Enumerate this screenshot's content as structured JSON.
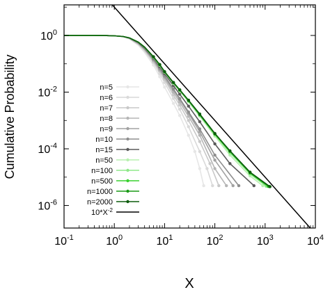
{
  "chart_data": {
    "type": "line",
    "xlabel": "X",
    "ylabel": "Cumulative Probability",
    "xscale": "log",
    "yscale": "log",
    "xlim": [
      0.1,
      10000
    ],
    "ylim": [
      1.6e-07,
      12
    ],
    "x_ticks": [
      {
        "value": 0.1,
        "base": "10",
        "exp": "-1"
      },
      {
        "value": 1,
        "base": "10",
        "exp": "0"
      },
      {
        "value": 10,
        "base": "10",
        "exp": "1"
      },
      {
        "value": 100,
        "base": "10",
        "exp": "2"
      },
      {
        "value": 1000,
        "base": "10",
        "exp": "3"
      },
      {
        "value": 10000,
        "base": "10",
        "exp": "4"
      }
    ],
    "y_ticks": [
      {
        "value": 1,
        "base": "10",
        "exp": "0"
      },
      {
        "value": 0.01,
        "base": "10",
        "exp": "-2"
      },
      {
        "value": 0.0001,
        "base": "10",
        "exp": "-4"
      },
      {
        "value": 1e-06,
        "base": "10",
        "exp": "-6"
      }
    ],
    "grid": false,
    "legend_position": "left",
    "reference_line": {
      "label": "10*X",
      "label_exp": "-2",
      "coefficient": 10,
      "exponent": -2,
      "color": "#000000"
    },
    "series": [
      {
        "name": "n=5",
        "n": 5,
        "color": "#e6e6e6",
        "xmax": 60,
        "points": [
          [
            0.1,
            1
          ],
          [
            0.2,
            1
          ],
          [
            0.4,
            0.998
          ],
          [
            0.7,
            0.99
          ],
          [
            1,
            0.97
          ],
          [
            1.5,
            0.9
          ],
          [
            2,
            0.75
          ],
          [
            3,
            0.45
          ],
          [
            4,
            0.25
          ],
          [
            6,
            0.09
          ],
          [
            8,
            0.035
          ],
          [
            10,
            0.015
          ],
          [
            15,
            0.004
          ],
          [
            20,
            0.0015
          ],
          [
            30,
            0.0003
          ],
          [
            40,
            8e-05
          ],
          [
            50,
            2e-05
          ],
          [
            60,
            5e-06
          ]
        ]
      },
      {
        "name": "n=6",
        "n": 6,
        "color": "#d9d9d9",
        "xmax": 90,
        "points": [
          [
            0.1,
            1
          ],
          [
            0.2,
            1
          ],
          [
            0.4,
            0.998
          ],
          [
            0.7,
            0.99
          ],
          [
            1,
            0.97
          ],
          [
            1.5,
            0.91
          ],
          [
            2,
            0.77
          ],
          [
            3,
            0.48
          ],
          [
            4,
            0.28
          ],
          [
            6,
            0.11
          ],
          [
            8,
            0.045
          ],
          [
            10,
            0.022
          ],
          [
            15,
            0.006
          ],
          [
            20,
            0.0025
          ],
          [
            30,
            0.0006
          ],
          [
            50,
            8e-05
          ],
          [
            70,
            2e-05
          ],
          [
            90,
            5e-06
          ]
        ]
      },
      {
        "name": "n=7",
        "n": 7,
        "color": "#c8c8c8",
        "xmax": 120,
        "points": [
          [
            0.1,
            1
          ],
          [
            0.2,
            1
          ],
          [
            0.4,
            0.998
          ],
          [
            0.7,
            0.99
          ],
          [
            1,
            0.97
          ],
          [
            1.5,
            0.91
          ],
          [
            2,
            0.78
          ],
          [
            3,
            0.5
          ],
          [
            4,
            0.3
          ],
          [
            6,
            0.12
          ],
          [
            8,
            0.055
          ],
          [
            10,
            0.028
          ],
          [
            15,
            0.008
          ],
          [
            20,
            0.0035
          ],
          [
            30,
            0.001
          ],
          [
            50,
            0.00018
          ],
          [
            80,
            3e-05
          ],
          [
            120,
            5e-06
          ]
        ]
      },
      {
        "name": "n=8",
        "n": 8,
        "color": "#b5b5b5",
        "xmax": 170,
        "points": [
          [
            0.1,
            1
          ],
          [
            0.2,
            1
          ],
          [
            0.4,
            0.998
          ],
          [
            0.7,
            0.99
          ],
          [
            1,
            0.97
          ],
          [
            1.5,
            0.91
          ],
          [
            2,
            0.79
          ],
          [
            3,
            0.52
          ],
          [
            4,
            0.32
          ],
          [
            6,
            0.13
          ],
          [
            8,
            0.06
          ],
          [
            10,
            0.032
          ],
          [
            15,
            0.01
          ],
          [
            20,
            0.0045
          ],
          [
            30,
            0.0014
          ],
          [
            50,
            0.0003
          ],
          [
            100,
            2e-05
          ],
          [
            170,
            5e-06
          ]
        ]
      },
      {
        "name": "n=9",
        "n": 9,
        "color": "#a2a2a2",
        "xmax": 230,
        "points": [
          [
            0.1,
            1
          ],
          [
            0.2,
            1
          ],
          [
            0.4,
            0.998
          ],
          [
            0.7,
            0.99
          ],
          [
            1,
            0.97
          ],
          [
            1.5,
            0.92
          ],
          [
            2,
            0.8
          ],
          [
            3,
            0.53
          ],
          [
            4,
            0.33
          ],
          [
            6,
            0.14
          ],
          [
            8,
            0.065
          ],
          [
            10,
            0.035
          ],
          [
            15,
            0.012
          ],
          [
            20,
            0.0055
          ],
          [
            30,
            0.0018
          ],
          [
            50,
            0.0004
          ],
          [
            100,
            4e-05
          ],
          [
            230,
            5e-06
          ]
        ]
      },
      {
        "name": "n=10",
        "n": 10,
        "color": "#8e8e8e",
        "xmax": 300,
        "points": [
          [
            0.1,
            1
          ],
          [
            0.2,
            1
          ],
          [
            0.4,
            0.998
          ],
          [
            0.7,
            0.99
          ],
          [
            1,
            0.97
          ],
          [
            1.5,
            0.92
          ],
          [
            2,
            0.8
          ],
          [
            3,
            0.54
          ],
          [
            4,
            0.34
          ],
          [
            6,
            0.145
          ],
          [
            8,
            0.07
          ],
          [
            10,
            0.038
          ],
          [
            15,
            0.013
          ],
          [
            20,
            0.006
          ],
          [
            30,
            0.002
          ],
          [
            50,
            0.0005
          ],
          [
            100,
            6e-05
          ],
          [
            300,
            5e-06
          ]
        ]
      },
      {
        "name": "n=15",
        "n": 15,
        "color": "#5a5a5a",
        "xmax": 600,
        "points": [
          [
            0.1,
            1
          ],
          [
            0.2,
            1
          ],
          [
            0.4,
            0.998
          ],
          [
            0.7,
            0.99
          ],
          [
            1,
            0.97
          ],
          [
            1.5,
            0.92
          ],
          [
            2,
            0.81
          ],
          [
            3,
            0.56
          ],
          [
            4,
            0.36
          ],
          [
            6,
            0.16
          ],
          [
            8,
            0.08
          ],
          [
            10,
            0.045
          ],
          [
            15,
            0.017
          ],
          [
            20,
            0.0085
          ],
          [
            30,
            0.0032
          ],
          [
            50,
            0.0009
          ],
          [
            100,
            0.00015
          ],
          [
            200,
            3e-05
          ],
          [
            600,
            5e-06
          ]
        ]
      },
      {
        "name": "n=50",
        "n": 50,
        "color": "#b8f0b0",
        "xmax": 900,
        "points": [
          [
            0.1,
            1
          ],
          [
            0.2,
            1
          ],
          [
            0.4,
            0.998
          ],
          [
            0.7,
            0.99
          ],
          [
            1,
            0.97
          ],
          [
            1.5,
            0.92
          ],
          [
            2,
            0.82
          ],
          [
            3,
            0.58
          ],
          [
            4,
            0.38
          ],
          [
            6,
            0.17
          ],
          [
            8,
            0.088
          ],
          [
            10,
            0.05
          ],
          [
            15,
            0.02
          ],
          [
            20,
            0.011
          ],
          [
            30,
            0.0045
          ],
          [
            50,
            0.0014
          ],
          [
            100,
            0.00028
          ],
          [
            200,
            6e-05
          ],
          [
            500,
            1.1e-05
          ],
          [
            900,
            5e-06
          ]
        ]
      },
      {
        "name": "n=100",
        "n": 100,
        "color": "#8fe88a",
        "xmax": 1050,
        "points": [
          [
            0.1,
            1
          ],
          [
            0.2,
            1
          ],
          [
            0.4,
            0.998
          ],
          [
            0.7,
            0.99
          ],
          [
            1,
            0.97
          ],
          [
            1.5,
            0.92
          ],
          [
            2,
            0.82
          ],
          [
            3,
            0.58
          ],
          [
            4,
            0.385
          ],
          [
            6,
            0.172
          ],
          [
            8,
            0.09
          ],
          [
            10,
            0.051
          ],
          [
            15,
            0.021
          ],
          [
            20,
            0.0115
          ],
          [
            30,
            0.0048
          ],
          [
            50,
            0.0015
          ],
          [
            100,
            0.00031
          ],
          [
            200,
            7.2e-05
          ],
          [
            500,
            1.3e-05
          ],
          [
            1050,
            4.8e-06
          ]
        ]
      },
      {
        "name": "n=500",
        "n": 500,
        "color": "#39d12f",
        "xmax": 1150,
        "points": [
          [
            0.1,
            1
          ],
          [
            0.2,
            1
          ],
          [
            0.4,
            0.998
          ],
          [
            0.7,
            0.99
          ],
          [
            1,
            0.97
          ],
          [
            1.5,
            0.92
          ],
          [
            2,
            0.82
          ],
          [
            3,
            0.585
          ],
          [
            4,
            0.388
          ],
          [
            6,
            0.175
          ],
          [
            8,
            0.092
          ],
          [
            10,
            0.052
          ],
          [
            15,
            0.0215
          ],
          [
            20,
            0.0118
          ],
          [
            30,
            0.005
          ],
          [
            50,
            0.0016
          ],
          [
            100,
            0.00033
          ],
          [
            200,
            8e-05
          ],
          [
            500,
            1.4e-05
          ],
          [
            1150,
            4.7e-06
          ]
        ]
      },
      {
        "name": "n=1000",
        "n": 1000,
        "color": "#1a9a16",
        "xmax": 1200,
        "points": [
          [
            0.1,
            1
          ],
          [
            0.2,
            1
          ],
          [
            0.4,
            0.998
          ],
          [
            0.7,
            0.99
          ],
          [
            1,
            0.97
          ],
          [
            1.5,
            0.92
          ],
          [
            2,
            0.82
          ],
          [
            3,
            0.585
          ],
          [
            4,
            0.389
          ],
          [
            6,
            0.176
          ],
          [
            8,
            0.093
          ],
          [
            10,
            0.0525
          ],
          [
            15,
            0.0218
          ],
          [
            20,
            0.012
          ],
          [
            30,
            0.0051
          ],
          [
            50,
            0.0016
          ],
          [
            100,
            0.00034
          ],
          [
            200,
            8.2e-05
          ],
          [
            500,
            1.45e-05
          ],
          [
            1200,
            4.7e-06
          ]
        ]
      },
      {
        "name": "n=2000",
        "n": 2000,
        "color": "#0d5c0d",
        "xmax": 1250,
        "points": [
          [
            0.1,
            1
          ],
          [
            0.2,
            1
          ],
          [
            0.4,
            0.998
          ],
          [
            0.7,
            0.99
          ],
          [
            1,
            0.97
          ],
          [
            1.5,
            0.92
          ],
          [
            2,
            0.82
          ],
          [
            3,
            0.586
          ],
          [
            4,
            0.39
          ],
          [
            6,
            0.177
          ],
          [
            8,
            0.094
          ],
          [
            10,
            0.053
          ],
          [
            15,
            0.022
          ],
          [
            20,
            0.0121
          ],
          [
            30,
            0.0052
          ],
          [
            50,
            0.0017
          ],
          [
            100,
            0.00035
          ],
          [
            200,
            8.5e-05
          ],
          [
            500,
            1.5e-05
          ],
          [
            1250,
            4.6e-06
          ]
        ]
      }
    ]
  }
}
